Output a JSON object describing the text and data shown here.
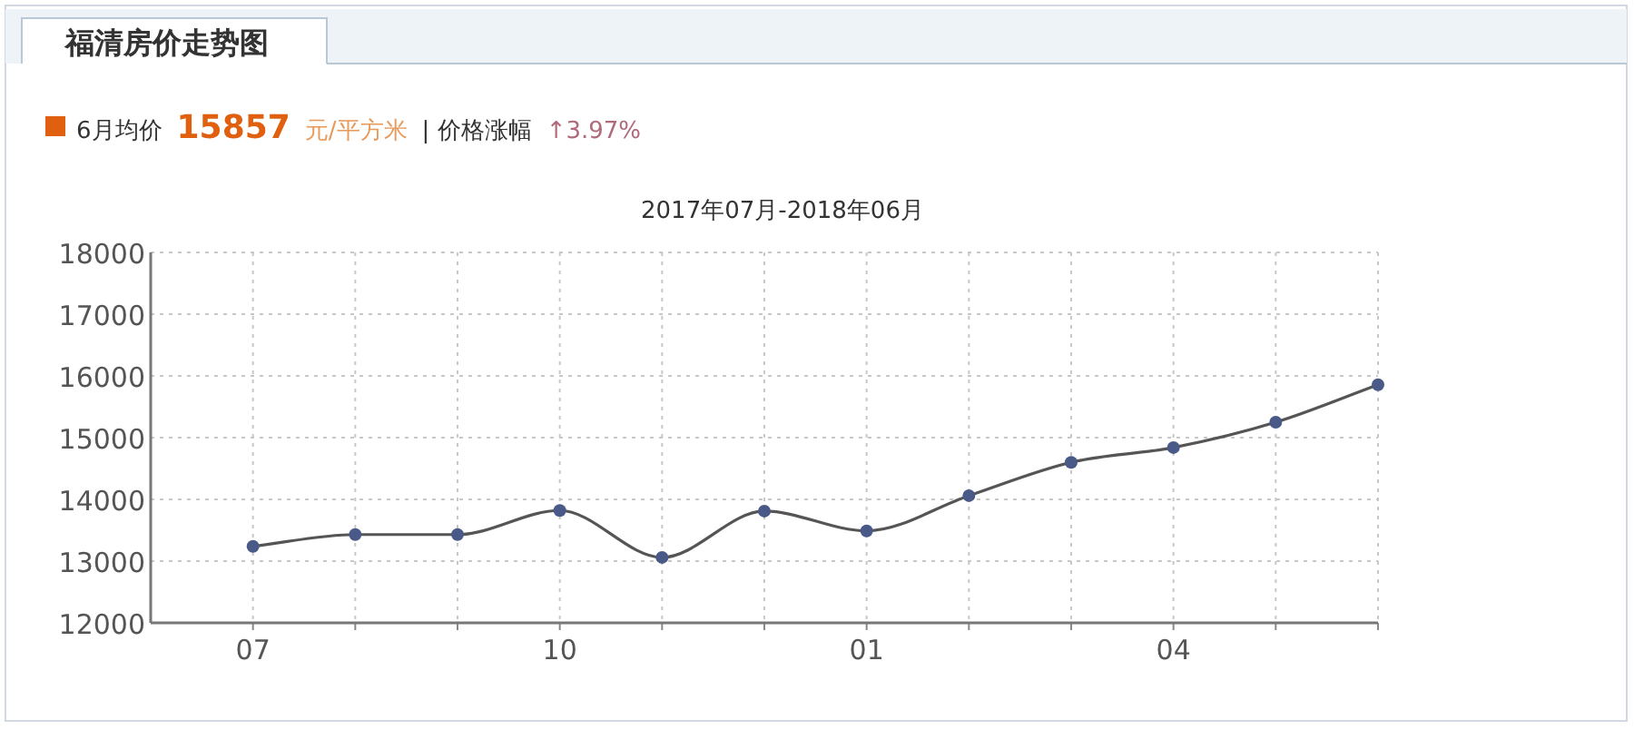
{
  "chart_data": {
    "type": "line",
    "title": "福清房价走势图",
    "subtitle": "2017年07月-2018年06月",
    "annotations": [
      "6月均价",
      "15857",
      "元/平方米",
      "| 价格涨幅",
      "↑3.97%"
    ],
    "categories": [
      "07",
      null,
      null,
      "10",
      null,
      null,
      "01",
      null,
      null,
      "04",
      null,
      null
    ],
    "series": [
      {
        "color": "#4a5a88",
        "values": [
          13240,
          13430,
          13430,
          13820,
          13060,
          13810,
          13490,
          14060,
          14600,
          14840,
          15250,
          15857
        ]
      }
    ],
    "ylim": [
      12000,
      18000
    ],
    "yticks": [
      12000,
      13000,
      14000,
      15000,
      16000,
      17000,
      18000
    ],
    "grid": true,
    "marker": "circle",
    "line_style": "solid"
  }
}
